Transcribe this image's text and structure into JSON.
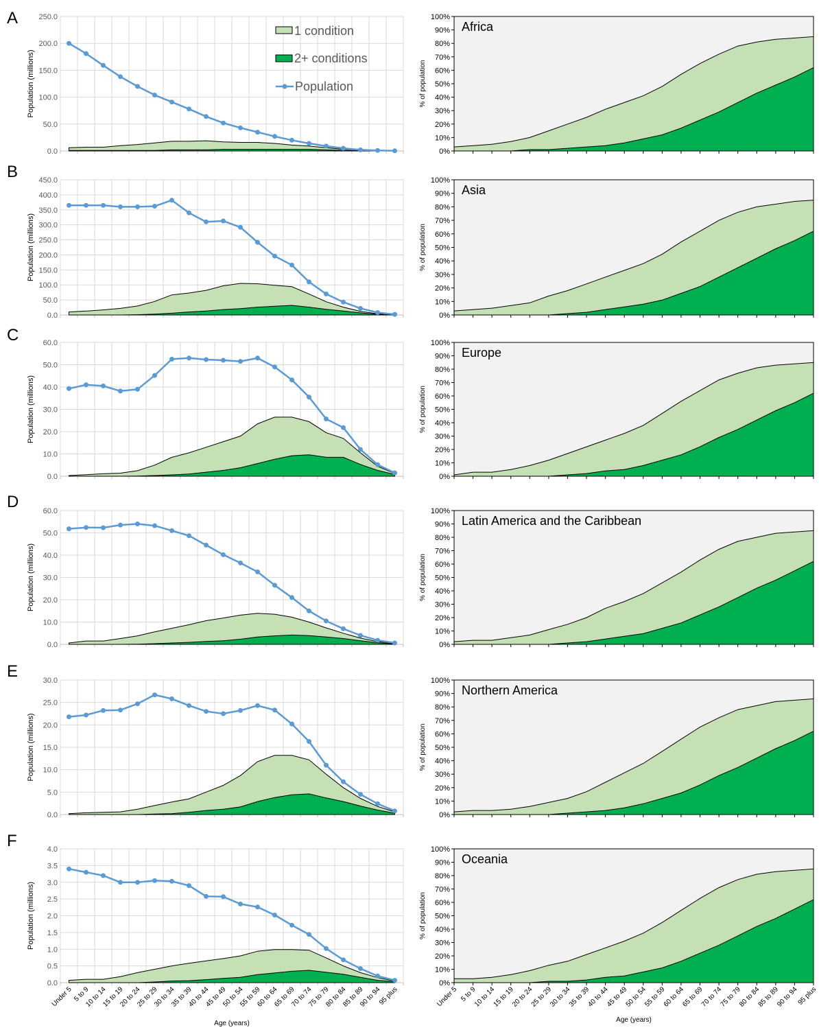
{
  "colors": {
    "population": "#5b9bd5",
    "one_condition": "#c5e0b4",
    "two_plus": "#00b050",
    "background_right": "#f2f2f2",
    "grid": "#d9d9d9"
  },
  "common": {
    "categories": [
      "Under 5",
      "5 to 9",
      "10 to 14",
      "15 to 19",
      "20 to 24",
      "25 to 29",
      "30 to 34",
      "35 to 39",
      "40 to 44",
      "45 to 49",
      "50 to 54",
      "55 to 59",
      "60 to 64",
      "65 to 69",
      "70 to 74",
      "75 to 79",
      "80 to 84",
      "85 to 89",
      "90 to 94",
      "95 plus"
    ],
    "xlabel": "Age (years)",
    "left_ylabel": "Population (millions)",
    "right_ylabel": "% of population",
    "right_ticks": [
      "0%",
      "10%",
      "20%",
      "30%",
      "40%",
      "50%",
      "60%",
      "70%",
      "80%",
      "90%",
      "100%"
    ],
    "legend": [
      "1 condition",
      "2+ conditions",
      "Population"
    ]
  },
  "chart_data": [
    {
      "type": "area",
      "panel": "A",
      "region": "Africa",
      "ylim": [
        0,
        250
      ],
      "yticks": [
        "0.0",
        "50.0",
        "100.0",
        "150.0",
        "200.0",
        "250.0"
      ],
      "population": [
        200,
        181,
        159,
        138,
        120,
        104,
        91,
        78,
        64,
        52,
        43,
        35,
        27,
        20,
        14,
        9,
        5,
        2,
        1,
        0.3
      ],
      "one_condition": [
        6,
        7,
        7,
        10,
        12,
        15,
        18,
        18,
        19,
        17,
        16,
        16,
        14,
        11,
        9,
        6,
        3,
        1.5,
        0.5,
        0.1
      ],
      "two_plus": [
        1,
        1,
        1,
        1,
        1,
        1,
        2,
        2,
        2,
        3,
        3,
        3,
        3,
        3,
        3,
        2,
        1,
        0.5,
        0.2,
        0.1
      ],
      "pct_total": [
        3,
        4,
        5,
        7,
        10,
        15,
        20,
        25,
        31,
        36,
        41,
        48,
        57,
        65,
        72,
        78,
        81,
        83,
        84,
        85
      ],
      "pct_two_plus": [
        0,
        0,
        0,
        0,
        1,
        1,
        2,
        3,
        4,
        6,
        9,
        12,
        17,
        23,
        29,
        36,
        43,
        49,
        55,
        62
      ]
    },
    {
      "type": "area",
      "panel": "B",
      "region": "Asia",
      "ylim": [
        0,
        450
      ],
      "yticks": [
        "0.0",
        "50.0",
        "100.0",
        "150.0",
        "200.0",
        "250.0",
        "300.0",
        "350.0",
        "400.0",
        "450.0"
      ],
      "population": [
        365,
        365,
        365,
        360,
        360,
        362,
        382,
        340,
        310,
        313,
        292,
        242,
        196,
        166,
        110,
        70,
        43,
        22,
        8,
        2
      ],
      "one_condition": [
        10,
        13,
        17,
        22,
        30,
        45,
        67,
        73,
        82,
        97,
        105,
        104,
        99,
        94,
        70,
        44,
        26,
        12,
        4,
        1
      ],
      "two_plus": [
        0,
        0,
        0,
        0,
        1,
        3,
        6,
        10,
        13,
        18,
        21,
        26,
        29,
        32,
        26,
        19,
        13,
        7,
        2,
        0.5
      ],
      "pct_total": [
        3,
        4,
        5,
        7,
        9,
        14,
        18,
        23,
        28,
        33,
        38,
        45,
        54,
        62,
        70,
        76,
        80,
        82,
        84,
        85
      ],
      "pct_two_plus": [
        0,
        0,
        0,
        0,
        0,
        0,
        1,
        2,
        4,
        6,
        8,
        11,
        16,
        21,
        28,
        35,
        42,
        49,
        55,
        62
      ]
    },
    {
      "type": "area",
      "panel": "C",
      "region": "Europe",
      "ylim": [
        0,
        60
      ],
      "yticks": [
        "0.0",
        "10.0",
        "20.0",
        "30.0",
        "40.0",
        "50.0",
        "60.0"
      ],
      "population": [
        39.3,
        41,
        40.5,
        38.2,
        39,
        45.2,
        52.5,
        53,
        52.3,
        52,
        51.5,
        53,
        49,
        43.2,
        35.5,
        25.7,
        21.8,
        12,
        5.2,
        1.5
      ],
      "one_condition": [
        0.3,
        0.7,
        1.1,
        1.4,
        2.5,
        5,
        8.5,
        10.5,
        13,
        15.5,
        18,
        23.5,
        26.5,
        26.5,
        24.5,
        19.5,
        17,
        10.5,
        4.5,
        1.2
      ],
      "two_plus": [
        0,
        0,
        0,
        0,
        0.1,
        0.3,
        0.6,
        1,
        1.8,
        2.6,
        3.8,
        5.7,
        7.6,
        9.2,
        9.6,
        8.5,
        8.5,
        5.3,
        2.6,
        0.8
      ],
      "pct_total": [
        1,
        3,
        3,
        5,
        8,
        12,
        17,
        22,
        27,
        32,
        38,
        47,
        56,
        64,
        72,
        77,
        81,
        83,
        84,
        85
      ],
      "pct_two_plus": [
        0,
        0,
        0,
        0,
        0,
        0,
        1,
        2,
        4,
        5,
        8,
        12,
        16,
        22,
        29,
        35,
        42,
        49,
        55,
        62
      ]
    },
    {
      "type": "area",
      "panel": "D",
      "region": "Latin America and the Caribbean",
      "ylim": [
        0,
        60
      ],
      "yticks": [
        "0.0",
        "10.0",
        "20.0",
        "30.0",
        "40.0",
        "50.0",
        "60.0"
      ],
      "population": [
        51.8,
        52.4,
        52.3,
        53.5,
        54,
        53.2,
        51,
        48.7,
        44.5,
        40.2,
        36.5,
        32.5,
        26.5,
        21,
        15,
        10.5,
        7,
        4,
        1.8,
        0.6
      ],
      "one_condition": [
        0.6,
        1.5,
        1.5,
        2.6,
        3.8,
        5.6,
        7.2,
        8.8,
        10.6,
        11.8,
        13.1,
        13.9,
        13.5,
        12.2,
        10,
        7.4,
        5,
        2.8,
        1.2,
        0.4
      ],
      "two_plus": [
        0,
        0,
        0,
        0,
        0.1,
        0.3,
        0.6,
        0.9,
        1.3,
        1.6,
        2.3,
        3.3,
        3.8,
        4.2,
        3.9,
        3.3,
        2.6,
        1.6,
        0.7,
        0.2
      ],
      "pct_total": [
        2,
        3,
        3,
        5,
        7,
        11,
        15,
        20,
        27,
        32,
        38,
        46,
        54,
        63,
        71,
        77,
        80,
        83,
        84,
        85
      ],
      "pct_two_plus": [
        0,
        0,
        0,
        0,
        0,
        0,
        1,
        2,
        4,
        6,
        8,
        12,
        16,
        22,
        28,
        35,
        42,
        48,
        55,
        62
      ]
    },
    {
      "type": "area",
      "panel": "E",
      "region": "Northern America",
      "ylim": [
        0,
        30
      ],
      "yticks": [
        "0.0",
        "5.0",
        "10.0",
        "15.0",
        "20.0",
        "25.0",
        "30.0"
      ],
      "population": [
        21.8,
        22.2,
        23.2,
        23.3,
        24.7,
        26.7,
        25.8,
        24.3,
        23,
        22.5,
        23.2,
        24.3,
        23.3,
        20.2,
        16.3,
        11,
        7.3,
        4.5,
        2.4,
        0.8
      ],
      "one_condition": [
        0.2,
        0.4,
        0.5,
        0.6,
        1.2,
        2,
        2.8,
        3.5,
        5,
        6.5,
        8.7,
        11.8,
        13.2,
        13.2,
        12.2,
        9,
        6,
        3.6,
        1.8,
        0.6
      ],
      "two_plus": [
        0,
        0,
        0,
        0,
        0,
        0.1,
        0.2,
        0.5,
        0.9,
        1.2,
        1.7,
        2.9,
        3.8,
        4.4,
        4.6,
        3.7,
        2.9,
        1.9,
        1,
        0.3
      ],
      "pct_total": [
        2,
        3,
        3,
        4,
        6,
        9,
        12,
        17,
        24,
        31,
        38,
        47,
        56,
        65,
        72,
        78,
        81,
        84,
        85,
        86
      ],
      "pct_two_plus": [
        0,
        0,
        0,
        0,
        0,
        0,
        1,
        2,
        3,
        5,
        8,
        12,
        16,
        22,
        29,
        35,
        42,
        49,
        55,
        62
      ]
    },
    {
      "type": "area",
      "panel": "F",
      "region": "Oceania",
      "ylim": [
        0,
        4
      ],
      "yticks": [
        "0.0",
        "0.5",
        "1.0",
        "1.5",
        "2.0",
        "2.5",
        "3.0",
        "3.5",
        "4.0"
      ],
      "population": [
        3.4,
        3.3,
        3.2,
        3,
        3,
        3.05,
        3.03,
        2.9,
        2.58,
        2.57,
        2.35,
        2.26,
        2.02,
        1.72,
        1.44,
        1.02,
        0.68,
        0.42,
        0.2,
        0.07
      ],
      "one_condition": [
        0.07,
        0.1,
        0.1,
        0.18,
        0.3,
        0.4,
        0.5,
        0.58,
        0.65,
        0.72,
        0.8,
        0.94,
        0.99,
        0.99,
        0.97,
        0.74,
        0.5,
        0.3,
        0.15,
        0.05
      ],
      "two_plus": [
        0,
        0,
        0,
        0,
        0,
        0.02,
        0.05,
        0.06,
        0.09,
        0.13,
        0.16,
        0.24,
        0.29,
        0.34,
        0.37,
        0.31,
        0.25,
        0.16,
        0.07,
        0.03
      ],
      "pct_total": [
        3,
        3,
        4,
        6,
        9,
        13,
        16,
        21,
        26,
        31,
        37,
        45,
        54,
        63,
        71,
        77,
        81,
        83,
        84,
        85
      ],
      "pct_two_plus": [
        0,
        0,
        0,
        0,
        0,
        1,
        1,
        2,
        4,
        5,
        8,
        11,
        16,
        22,
        28,
        35,
        42,
        48,
        55,
        62
      ]
    }
  ]
}
